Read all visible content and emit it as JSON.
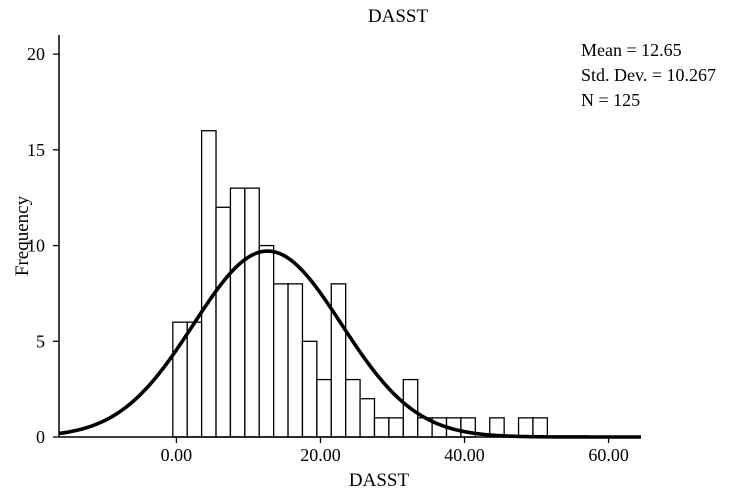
{
  "chart_data": {
    "type": "bar",
    "title": "DASST",
    "xlabel": "DASST",
    "ylabel": "Frequency",
    "xlim": [
      -16.3,
      64.5
    ],
    "ylim": [
      0,
      21
    ],
    "x_ticks": [
      {
        "value": 0,
        "label": "0.00"
      },
      {
        "value": 20,
        "label": "20.00"
      },
      {
        "value": 40,
        "label": "40.00"
      },
      {
        "value": 60,
        "label": "60.00"
      }
    ],
    "y_ticks": [
      {
        "value": 0,
        "label": "0"
      },
      {
        "value": 5,
        "label": "5"
      },
      {
        "value": 10,
        "label": "10"
      },
      {
        "value": 15,
        "label": "15"
      },
      {
        "value": 20,
        "label": "20"
      }
    ],
    "bin_width": 2,
    "bins": [
      {
        "start": -0.5,
        "count": 6
      },
      {
        "start": 1.5,
        "count": 6
      },
      {
        "start": 3.5,
        "count": 16
      },
      {
        "start": 5.5,
        "count": 12
      },
      {
        "start": 7.5,
        "count": 13
      },
      {
        "start": 9.5,
        "count": 13
      },
      {
        "start": 11.5,
        "count": 10
      },
      {
        "start": 13.5,
        "count": 8
      },
      {
        "start": 15.5,
        "count": 8
      },
      {
        "start": 17.5,
        "count": 5
      },
      {
        "start": 19.5,
        "count": 3
      },
      {
        "start": 21.5,
        "count": 8
      },
      {
        "start": 23.5,
        "count": 3
      },
      {
        "start": 25.5,
        "count": 2
      },
      {
        "start": 27.5,
        "count": 1
      },
      {
        "start": 29.5,
        "count": 1
      },
      {
        "start": 31.5,
        "count": 3
      },
      {
        "start": 33.5,
        "count": 1
      },
      {
        "start": 35.5,
        "count": 1
      },
      {
        "start": 37.5,
        "count": 1
      },
      {
        "start": 39.5,
        "count": 1
      },
      {
        "start": 43.5,
        "count": 1
      },
      {
        "start": 47.5,
        "count": 1
      },
      {
        "start": 49.5,
        "count": 1
      }
    ],
    "normal_curve": {
      "mean": 12.65,
      "std_dev": 10.267,
      "n": 125
    },
    "stats": {
      "mean": "Mean = 12.65",
      "std_dev": "Std. Dev. = 10.267",
      "n": "N = 125"
    },
    "grid": false,
    "legend": "none"
  }
}
